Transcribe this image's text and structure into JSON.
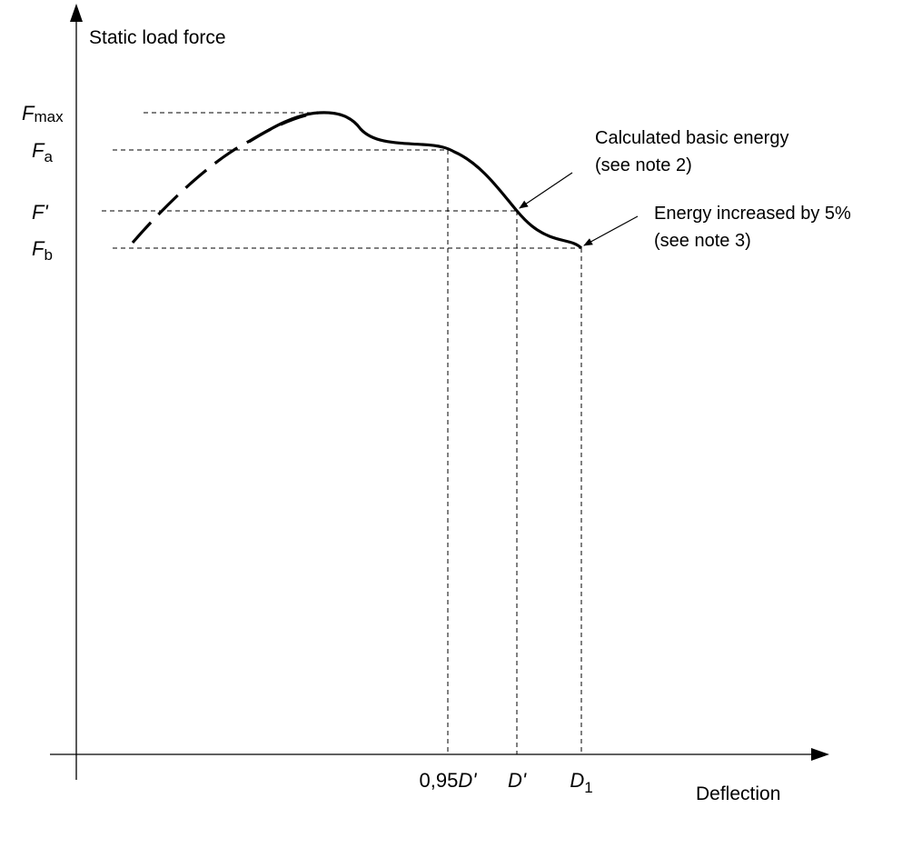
{
  "diagram": {
    "y_axis_title": "Static load force",
    "x_axis_title": "Deflection",
    "y_ticks": [
      {
        "italic": "F",
        "sub": "max",
        "prime": ""
      },
      {
        "italic": "F",
        "sub": "a",
        "prime": ""
      },
      {
        "italic": "F",
        "sub": "",
        "prime": "'"
      },
      {
        "italic": "F",
        "sub": "b",
        "prime": ""
      }
    ],
    "x_ticks": [
      {
        "prefix": "0,95",
        "italic": "D",
        "sub": "",
        "prime": "'"
      },
      {
        "prefix": "",
        "italic": "D",
        "sub": "",
        "prime": "'"
      },
      {
        "prefix": "",
        "italic": "D",
        "sub": "1",
        "prime": ""
      }
    ],
    "annotations": [
      {
        "line1": "Calculated basic energy",
        "line2": "(see note 2)"
      },
      {
        "line1": "Energy increased by 5%",
        "line2": "(see note 3)"
      }
    ],
    "colors": {
      "ink": "#000000",
      "background": "#ffffff"
    }
  }
}
